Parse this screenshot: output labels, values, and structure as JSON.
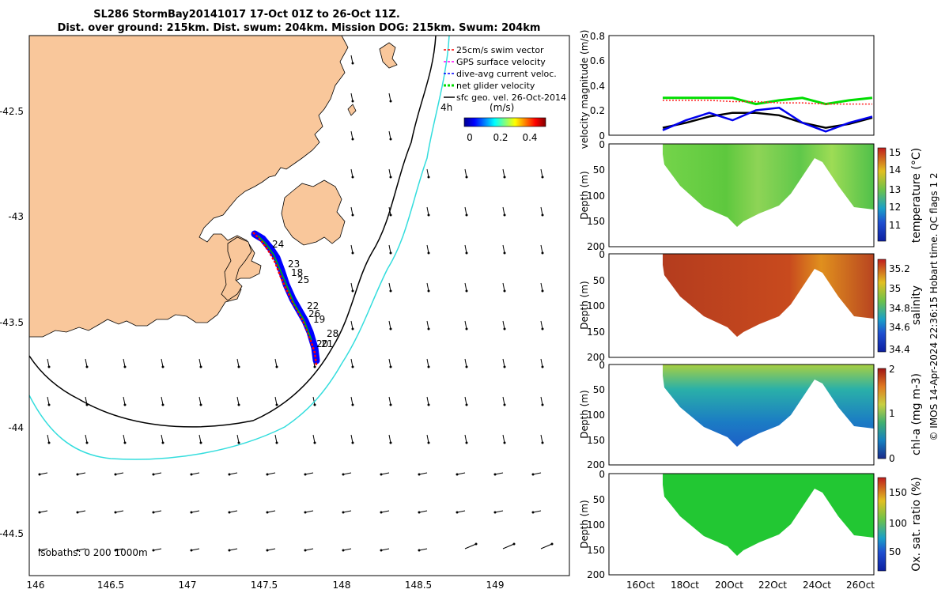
{
  "header": {
    "title_line1": "SL286 StormBay20141017 17-Oct 01Z to 26-Oct 11Z.",
    "title_line2": "Dist. over ground: 215km. Dist. swum: 204km. Mission DOG: 215km. Swum: 204km"
  },
  "colors": {
    "land": "#f9c79b",
    "iso200": "#000000",
    "iso1000": "#33dddd",
    "track_red": "#ff0000",
    "track_blue": "#0000ff",
    "track_green": "#00bb00",
    "vel_green": "#00dd00",
    "vel_blue": "#0000ee",
    "vel_red": "#ff2222",
    "vel_black": "#000000"
  },
  "map": {
    "xticks": [
      "146",
      "146.5",
      "147",
      "147.5",
      "148",
      "148.5",
      "149"
    ],
    "yticks": [
      "-42.5",
      "-43",
      "-43.5",
      "-44",
      "-44.5"
    ],
    "legend": [
      {
        "label": "25cm/s swim vector",
        "color": "#ff0000",
        "style": "dash"
      },
      {
        "label": "GPS surface velocity",
        "color": "#ff00ff",
        "style": "dash"
      },
      {
        "label": "dive-avg current veloc.",
        "color": "#0000ff",
        "style": "dash"
      },
      {
        "label": "net glider velocity",
        "color": "#00dd00",
        "style": "dash"
      },
      {
        "label": "sfc geo. vel. 26-Oct-2014",
        "color": "#000000",
        "style": "arrow"
      }
    ],
    "ref_arrow_label": "4h",
    "colorbar_title": "(m/s)",
    "colorbar_ticks": [
      "0",
      "0.2",
      "0.4"
    ],
    "isobath_label": "isobaths: 0   200  1000m",
    "day_labels": [
      "24",
      "23",
      "18",
      "25",
      "22",
      "26",
      "19",
      "28",
      "20",
      "21"
    ]
  },
  "panels": {
    "velocity": {
      "ylabel": "velocity magnitude (m/s)",
      "yticks": [
        "0",
        "0.2",
        "0.4",
        "0.6",
        "0.8"
      ]
    },
    "depth_ylabel": "Depth (m)",
    "depth_ticks": [
      "0",
      "50",
      "100",
      "150",
      "200"
    ],
    "temperature": {
      "label": "temperature (°C)",
      "ticks": [
        "11",
        "12",
        "13",
        "14",
        "15"
      ]
    },
    "salinity": {
      "label": "salinity",
      "ticks": [
        "34.4",
        "34.6",
        "34.8",
        "35",
        "35.2"
      ]
    },
    "chla": {
      "label": "chl-a (mg m-3)",
      "ticks": [
        "0",
        "1",
        "2"
      ]
    },
    "oxygen": {
      "label": "Ox. sat. ratio (%)",
      "ticks": [
        "50",
        "100",
        "150"
      ]
    },
    "xticks": [
      "16Oct",
      "18Oct",
      "20Oct",
      "22Oct",
      "24Oct",
      "26Oct"
    ]
  },
  "credit": "© IMOS 14-Apr-2024 22:36:15 Hobart time. QC flags 1  2",
  "chart_data": [
    {
      "type": "line",
      "title": "",
      "xlabel": "",
      "ylabel": "velocity magnitude (m/s)",
      "ylim": [
        0,
        0.8
      ],
      "x": [
        "17Oct",
        "18Oct",
        "19Oct",
        "20Oct",
        "21Oct",
        "22Oct",
        "23Oct",
        "24Oct",
        "25Oct",
        "26Oct"
      ],
      "series": [
        {
          "values": [
            0.3,
            0.3,
            0.3,
            0.3,
            0.25,
            0.28,
            0.3,
            0.25,
            0.28,
            0.3
          ]
        },
        {
          "values": [
            0.28,
            0.28,
            0.28,
            0.27,
            0.27,
            0.26,
            0.26,
            0.25,
            0.25,
            0.25
          ]
        },
        {
          "values": [
            0.06,
            0.1,
            0.15,
            0.18,
            0.18,
            0.16,
            0.1,
            0.06,
            0.09,
            0.14
          ]
        },
        {
          "values": [
            0.04,
            0.12,
            0.18,
            0.12,
            0.2,
            0.22,
            0.1,
            0.03,
            0.1,
            0.15
          ]
        }
      ]
    }
  ]
}
